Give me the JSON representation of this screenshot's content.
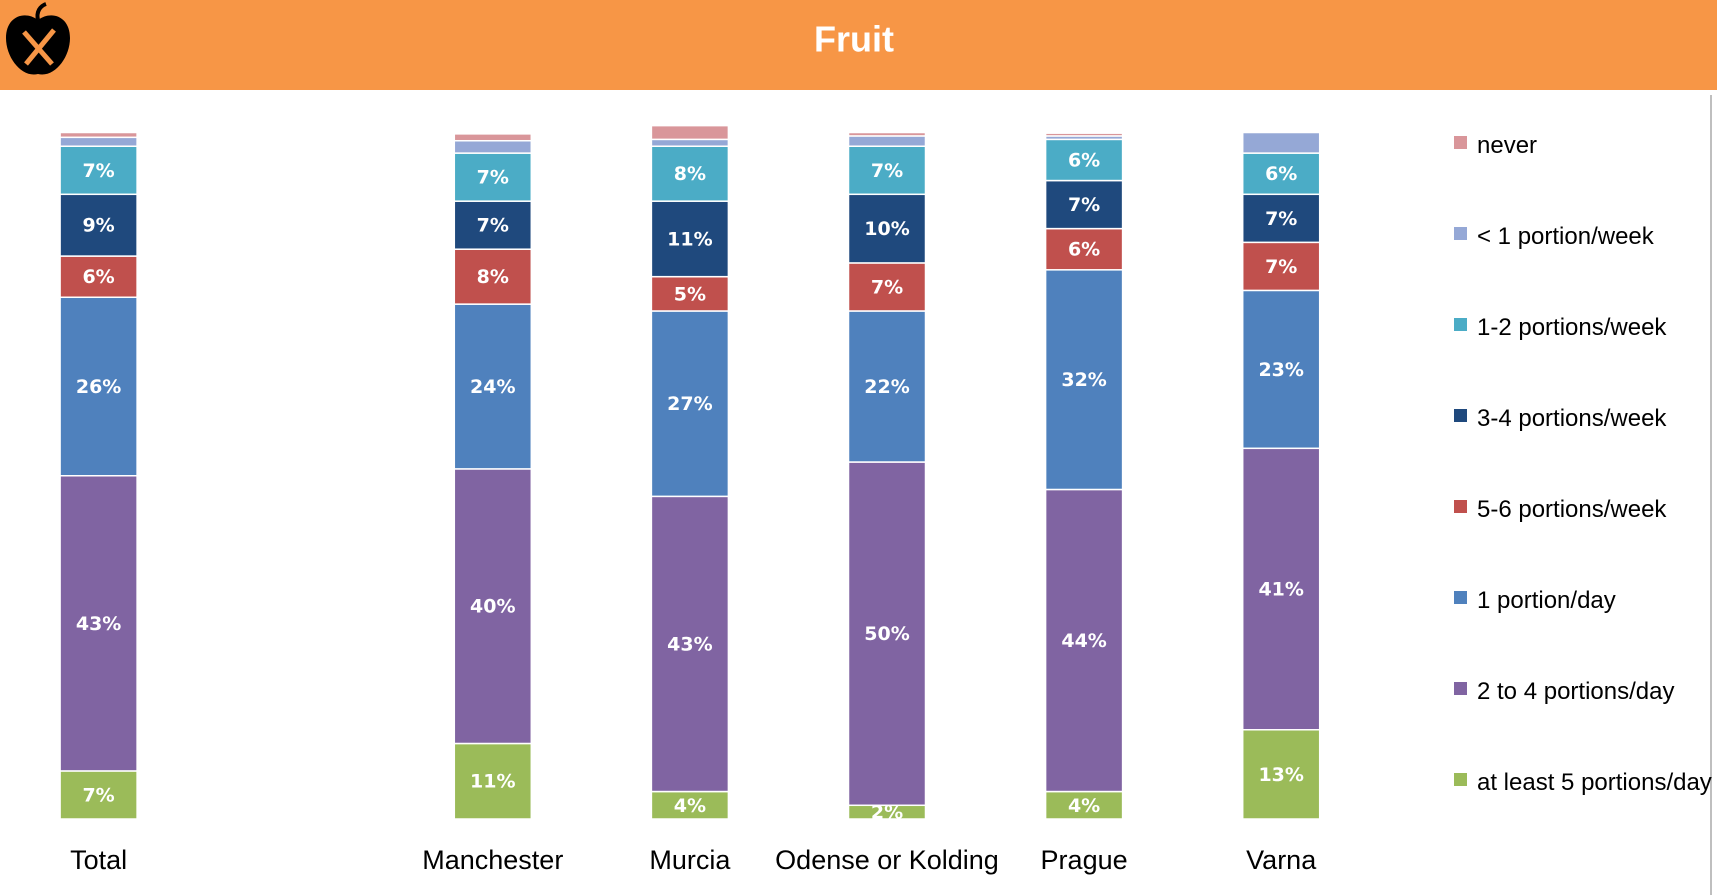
{
  "chart_data": {
    "type": "stacked_bar",
    "title": "Fruit",
    "categories": [
      "Total",
      null,
      "Manchester",
      "Murcia",
      "Odense or Kolding",
      "Prague",
      "Varna"
    ],
    "ylim": [
      0,
      100
    ],
    "series": [
      {
        "name": "at least 5 portions/day",
        "color": "#9bbb59",
        "values": [
          7,
          null,
          11,
          4,
          2,
          4,
          13
        ],
        "value_labels": [
          "7%",
          null,
          "11%",
          "4%",
          "2%",
          "4%",
          "13%"
        ]
      },
      {
        "name": "2 to 4 portions/day",
        "color": "#8064a2",
        "values": [
          43,
          null,
          40,
          43,
          50,
          44,
          41
        ],
        "value_labels": [
          "43%",
          null,
          "40%",
          "43%",
          "50%",
          "44%",
          "41%"
        ]
      },
      {
        "name": "1 portion/day",
        "color": "#4f81bd",
        "values": [
          26,
          null,
          24,
          27,
          22,
          32,
          23
        ],
        "value_labels": [
          "26%",
          null,
          "24%",
          "27%",
          "22%",
          "32%",
          "23%"
        ]
      },
      {
        "name": "5-6 portions/week",
        "color": "#c0504d",
        "values": [
          6,
          null,
          8,
          5,
          7,
          6,
          7
        ],
        "value_labels": [
          "6%",
          null,
          "8%",
          "5%",
          "7%",
          "6%",
          "7%"
        ]
      },
      {
        "name": "3-4 portions/week",
        "color": "#1f497d",
        "values": [
          9,
          null,
          7,
          11,
          10,
          7,
          7
        ],
        "value_labels": [
          "9%",
          null,
          "7%",
          "11%",
          "10%",
          "7%",
          "7%"
        ]
      },
      {
        "name": "1-2 portions/week",
        "color": "#4bacc6",
        "values": [
          7,
          null,
          7,
          8,
          7,
          6,
          6
        ],
        "value_labels": [
          "7%",
          null,
          "7%",
          "8%",
          "7%",
          "6%",
          "6%"
        ]
      },
      {
        "name": "< 1 portion/week",
        "color": "#95a8d6",
        "values": [
          1.3,
          null,
          1.8,
          1,
          1.5,
          0.5,
          3
        ]
      },
      {
        "name": "never",
        "color": "#d9969a",
        "values": [
          0.7,
          null,
          1,
          2,
          0.5,
          0.4,
          0
        ]
      }
    ]
  }
}
